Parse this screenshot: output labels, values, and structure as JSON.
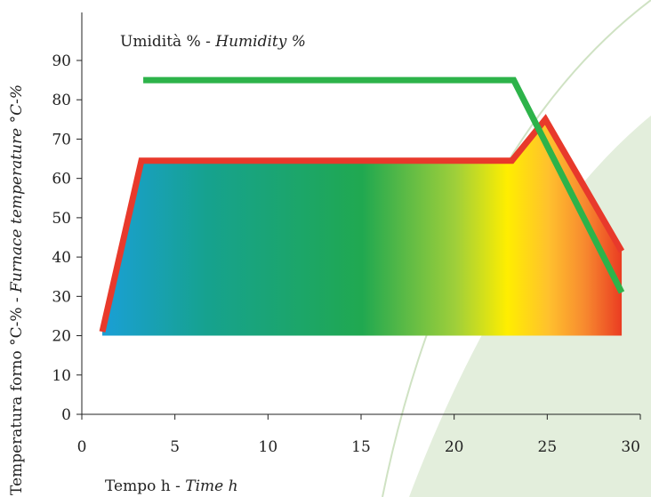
{
  "chart_data": {
    "type": "line",
    "xlabel": {
      "plain": "Tempo h - ",
      "italic": "Time h"
    },
    "ylabel": {
      "plain": "Temperatura forno °C-% - ",
      "italic": "Furnace temperature °C-%"
    },
    "annotation": {
      "plain": "Umidità % - ",
      "italic": "Humidity %"
    },
    "xlim": [
      0,
      30
    ],
    "ylim": [
      0,
      100
    ],
    "x_ticks": [
      0,
      5,
      10,
      15,
      20,
      25,
      30
    ],
    "y_ticks": [
      0,
      10,
      20,
      30,
      40,
      50,
      60,
      70,
      80,
      90
    ],
    "grid": false,
    "series": [
      {
        "name": "Furnace temperature °C",
        "color": "#e8392b",
        "points": [
          [
            1.1,
            21
          ],
          [
            3.2,
            64.5
          ],
          [
            23.1,
            64.5
          ],
          [
            24.9,
            75
          ],
          [
            29.0,
            41.5
          ]
        ]
      },
      {
        "name": "Humidity %",
        "color": "#2db34a",
        "points": [
          [
            3.3,
            85
          ],
          [
            23.2,
            85
          ],
          [
            29.0,
            31
          ]
        ]
      }
    ],
    "fill_gradient_colors": [
      "#1a9fd6",
      "#16a28f",
      "#20a850",
      "#9fcf3a",
      "#ffee00",
      "#ffc02e",
      "#f7892f",
      "#ea3c22"
    ],
    "background_shape_color": "#e3eedc"
  }
}
